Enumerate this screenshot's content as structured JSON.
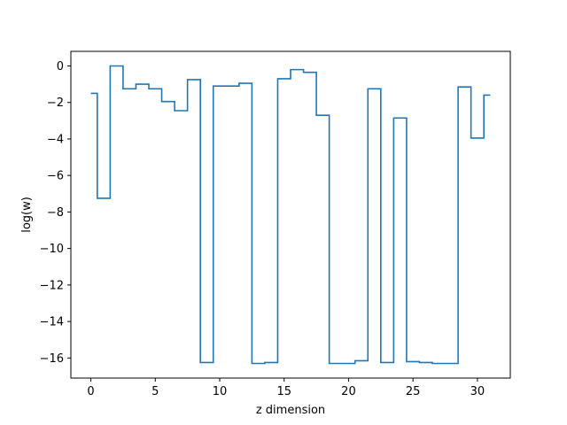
{
  "chart_data": {
    "type": "line",
    "drawstyle": "steps-mid",
    "title": "",
    "xlabel": "z dimension",
    "ylabel": "log(w)",
    "xlim": [
      -1.55,
      32.55
    ],
    "ylim": [
      -17.1,
      0.8
    ],
    "xticks": [
      0,
      5,
      10,
      15,
      20,
      25,
      30
    ],
    "xtick_labels": [
      "0",
      "5",
      "10",
      "15",
      "20",
      "25",
      "30"
    ],
    "yticks": [
      0,
      -2,
      -4,
      -6,
      -8,
      -10,
      -12,
      -14,
      -16
    ],
    "ytick_labels": [
      "0",
      "−2",
      "−4",
      "−6",
      "−8",
      "−10",
      "−12",
      "−14",
      "−16"
    ],
    "grid": false,
    "legend": "none",
    "series": [
      {
        "color": "#1f77b4",
        "x": [
          0,
          1,
          2,
          3,
          4,
          5,
          6,
          7,
          8,
          9,
          10,
          11,
          12,
          13,
          14,
          15,
          16,
          17,
          18,
          19,
          20,
          21,
          22,
          23,
          24,
          25,
          26,
          27,
          28,
          29,
          30,
          31
        ],
        "values": [
          -1.5,
          -7.25,
          0.0,
          -1.25,
          -1.0,
          -1.25,
          -1.95,
          -2.45,
          -0.75,
          -16.25,
          -1.1,
          -1.1,
          -0.95,
          -16.3,
          -16.25,
          -0.7,
          -0.2,
          -0.35,
          -2.7,
          -16.3,
          -16.3,
          -16.15,
          -1.25,
          -16.25,
          -2.85,
          -16.2,
          -16.25,
          -16.3,
          -16.3,
          -1.15,
          -3.95,
          -1.6
        ]
      }
    ]
  }
}
